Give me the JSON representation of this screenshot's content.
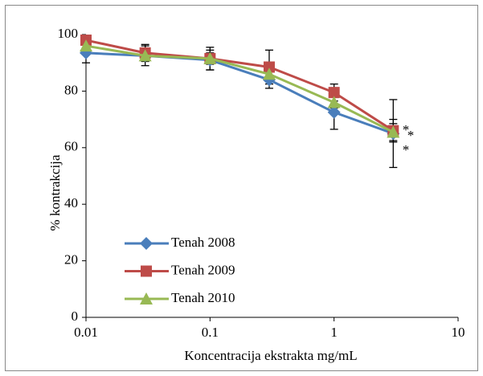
{
  "chart_data": {
    "type": "line",
    "x": [
      0.01,
      0.03,
      0.1,
      0.3,
      1,
      3
    ],
    "xlim": [
      0.01,
      10
    ],
    "xticks": [
      0.01,
      0.1,
      1,
      10
    ],
    "xscale": "log",
    "ylim": [
      0,
      100
    ],
    "yticks": [
      0,
      20,
      40,
      60,
      80,
      100
    ],
    "x_label": "Koncentracija ekstrakta mg/mL",
    "y_label": "%  kontrakcija",
    "grid": false,
    "legend": "lower left",
    "series": [
      {
        "name": "Tenah 2008",
        "color": "#4a7ebb",
        "marker": "diamond",
        "values": [
          93.5,
          92.5,
          91,
          84,
          72.5,
          65
        ],
        "errors": [
          3.5,
          3.5,
          3.5,
          3,
          6,
          12
        ]
      },
      {
        "name": "Tenah 2009",
        "color": "#be4b48",
        "marker": "square",
        "values": [
          98,
          93.5,
          91.5,
          88.5,
          79.5,
          66
        ],
        "errors": [
          1.5,
          3,
          4,
          6,
          3,
          4
        ]
      },
      {
        "name": "Tenah 2010",
        "color": "#98b954",
        "marker": "triangle",
        "values": [
          96,
          92.5,
          91.5,
          86,
          76,
          65.5
        ],
        "errors": [
          2,
          2,
          2,
          2,
          2,
          3
        ]
      }
    ],
    "annotations": [
      "*",
      "*",
      "*"
    ]
  }
}
